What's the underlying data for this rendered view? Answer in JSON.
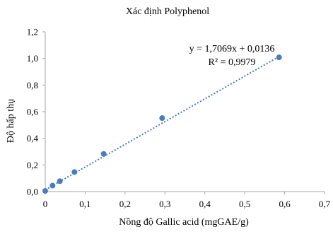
{
  "chart_data": {
    "type": "scatter",
    "title": "Xác định Polyphenol",
    "xlabel": "Nồng độ Gallic acid (mgGAE/g)",
    "ylabel": "Độ hấp thụ",
    "xlim": [
      0,
      0.7
    ],
    "ylim": [
      0,
      1.2
    ],
    "xticks": [
      0,
      0.1,
      0.2,
      0.3,
      0.4,
      0.5,
      0.6,
      0.7
    ],
    "yticks": [
      0,
      0.2,
      0.4,
      0.6,
      0.8,
      1.0,
      1.2
    ],
    "xtick_labels": [
      "0",
      "0,1",
      "0,2",
      "0,3",
      "0,4",
      "0,5",
      "0,6",
      "0,7"
    ],
    "ytick_labels": [
      "0,0",
      "0,2",
      "0,4",
      "0,6",
      "0,8",
      "1,0",
      "1,2"
    ],
    "grid": false,
    "legend": "none",
    "series": [
      {
        "x": [
          0,
          0.0183,
          0.0366,
          0.0732,
          0.1465,
          0.293,
          0.586
        ],
        "y": [
          0.005,
          0.045,
          0.078,
          0.147,
          0.283,
          0.552,
          1.008
        ],
        "color": "#4A7EBB",
        "marker": "circle"
      }
    ],
    "trendline": {
      "type": "linear",
      "slope": 1.7069,
      "intercept": 0.0136,
      "x_range": [
        0,
        0.586
      ],
      "style": "dotted",
      "color": "#4A7EBB",
      "equation_label": "y = 1,7069x + 0,0136",
      "r2_label": "R² = 0,9979"
    }
  }
}
